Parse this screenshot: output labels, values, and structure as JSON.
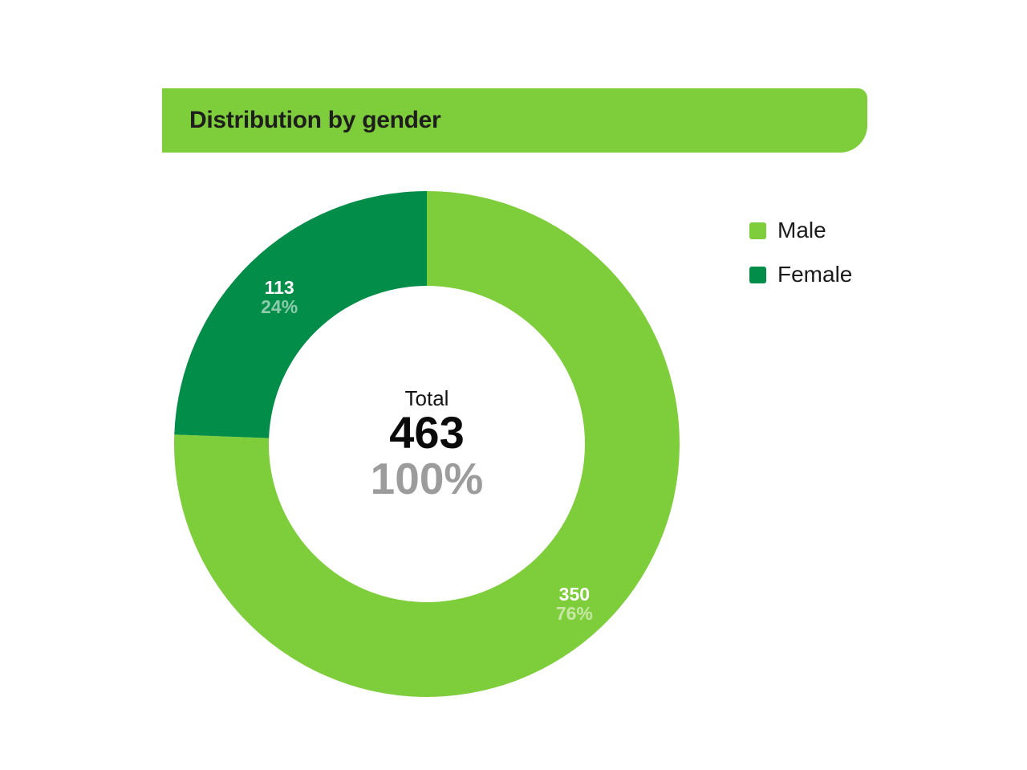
{
  "header": {
    "title": "Distribution by gender"
  },
  "colors": {
    "header_bar": "#7ECD3A",
    "title_text": "#1E1E1C",
    "male": "#7ECD3A",
    "female": "#028D48",
    "slice_value_text": "#FFFFFF",
    "slice_percent_text": "rgba(255,255,255,0.55)",
    "center_percent_text": "#9C9C9C"
  },
  "chart_data": {
    "type": "pie",
    "subtype": "donut",
    "title": "Distribution by gender",
    "categories": [
      "Male",
      "Female"
    ],
    "values": [
      350,
      113
    ],
    "value_labels": [
      "350",
      "113"
    ],
    "percent_labels": [
      "76%",
      "24%"
    ],
    "colors": [
      "#7ECD3A",
      "#028D48"
    ],
    "total": 463,
    "start_angle_deg": 0,
    "direction": "clockwise",
    "legend_position": "right",
    "grid": false,
    "center": {
      "label": "Total",
      "value": "463",
      "percent": "100%"
    }
  },
  "legend": {
    "items": [
      {
        "label": "Male",
        "color": "#7ECD3A"
      },
      {
        "label": "Female",
        "color": "#028D48"
      }
    ]
  }
}
